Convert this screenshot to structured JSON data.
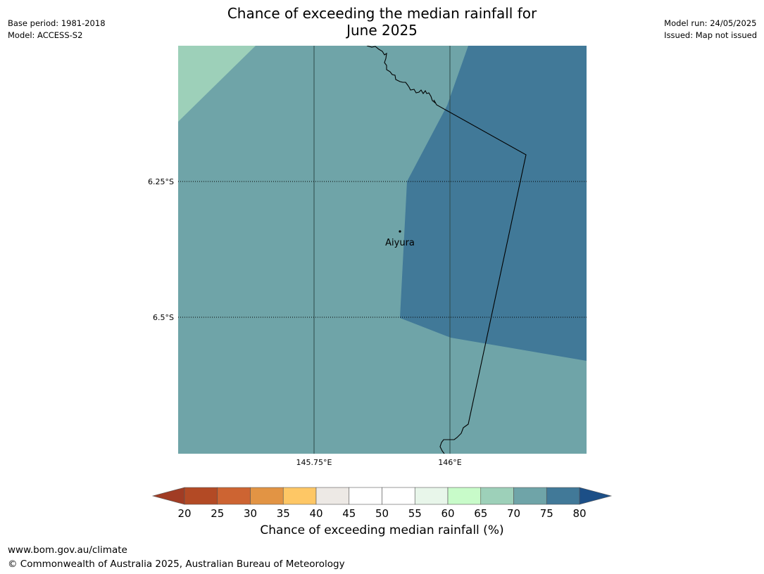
{
  "header": {
    "title_line1": "Chance of exceeding the median rainfall for",
    "title_line2": "June 2025",
    "base_period": "Base period: 1981-2018",
    "model": "Model: ACCESS-S2",
    "model_run": "Model run: 24/05/2025",
    "issued": "Issued: Map not issued"
  },
  "map": {
    "lat_labels": [
      "6.25°S",
      "6.5°S"
    ],
    "lon_labels": [
      "145.75°E",
      "146°E"
    ],
    "place": "Aiyura",
    "colors": {
      "zone_65_70": "#9dd0b9",
      "zone_70_75": "#6fa4a8",
      "zone_75_80": "#417998"
    }
  },
  "colorbar": {
    "ticks": [
      "20",
      "25",
      "30",
      "35",
      "40",
      "45",
      "50",
      "55",
      "60",
      "65",
      "70",
      "75",
      "80"
    ],
    "colors": [
      "#a13c24",
      "#b34a25",
      "#cd6432",
      "#e29444",
      "#fec765",
      "#ede9e5",
      "#ffffff",
      "#ffffff",
      "#e8f6ea",
      "#c8fbc9",
      "#9dd0b9",
      "#6fa4a8",
      "#417998",
      "#1c4f87"
    ],
    "label": "Chance of exceeding median rainfall (%)"
  },
  "footer": {
    "url": "www.bom.gov.au/climate",
    "copyright": "© Commonwealth of Australia 2025, Australian Bureau of Meteorology"
  }
}
